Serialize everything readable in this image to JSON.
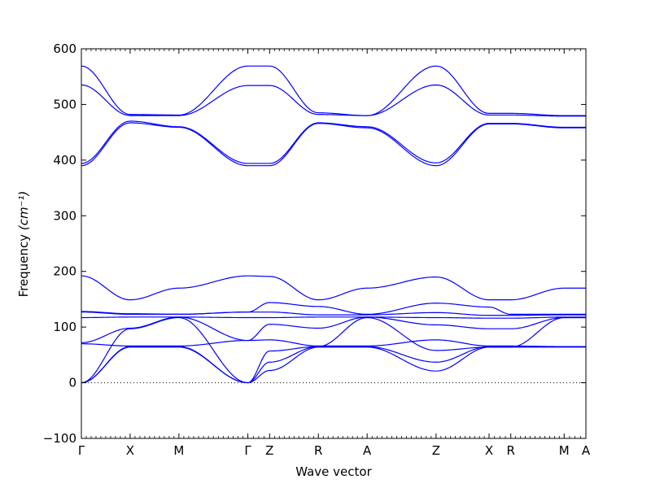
{
  "chart_data": {
    "type": "line",
    "title": "",
    "xlabel": "Wave vector",
    "ylabel": "Frequency",
    "ylabel_unit": "(cm⁻¹)",
    "ylim": [
      -100,
      600
    ],
    "yticks": [
      -100,
      0,
      100,
      200,
      300,
      400,
      500,
      600
    ],
    "ytick_labels": [
      "−100",
      "0",
      "100",
      "200",
      "300",
      "400",
      "500",
      "600"
    ],
    "grid": false,
    "legend": "none",
    "line_color": "#0000ff",
    "zero_line": {
      "y": 0,
      "style": "dotted",
      "color": "#000000"
    },
    "x_points": [
      {
        "label": "Γ",
        "x": 0.0
      },
      {
        "label": "X",
        "x": 0.5
      },
      {
        "label": "M",
        "x": 1.0
      },
      {
        "label": "Γ",
        "x": 1.707
      },
      {
        "label": "Z",
        "x": 1.93
      },
      {
        "label": "R",
        "x": 2.43
      },
      {
        "label": "A",
        "x": 2.93
      },
      {
        "label": "Z",
        "x": 3.637
      },
      {
        "label": "X",
        "x": 4.18
      },
      {
        "label": "R",
        "x": 4.403
      },
      {
        "label": "M",
        "x": 4.95
      },
      {
        "label": "A",
        "x": 5.173
      }
    ],
    "xlim": [
      0,
      5.173
    ],
    "series": [
      {
        "values": [
          569,
          482,
          481,
          569,
          569,
          485,
          480,
          569,
          484,
          484,
          480,
          480
        ]
      },
      {
        "values": [
          535,
          480,
          480,
          534,
          534,
          482,
          480,
          535,
          481,
          481,
          479,
          479
        ]
      },
      {
        "values": [
          394,
          470,
          460,
          394,
          394,
          467,
          460,
          395,
          466,
          466,
          459,
          459
        ]
      },
      {
        "values": [
          390,
          467,
          459,
          390,
          390,
          466,
          458,
          390,
          465,
          465,
          458,
          458
        ]
      },
      {
        "values": [
          192,
          149,
          170,
          192,
          191,
          149,
          170,
          190,
          149,
          149,
          170,
          170
        ]
      },
      {
        "values": [
          128,
          124,
          123,
          127,
          144,
          137,
          123,
          143,
          136,
          123,
          123,
          123
        ]
      },
      {
        "values": [
          127,
          123,
          123,
          127,
          127,
          122,
          122,
          126,
          121,
          121,
          122,
          122
        ]
      },
      {
        "values": [
          117,
          118,
          118,
          117,
          117,
          118,
          118,
          117,
          116,
          116,
          118,
          118
        ]
      },
      {
        "values": [
          72,
          98,
          118,
          76,
          105,
          98,
          118,
          104,
          97,
          97,
          117,
          117
        ]
      },
      {
        "values": [
          70,
          66,
          66,
          76,
          77,
          66,
          66,
          77,
          66,
          66,
          65,
          65
        ]
      },
      {
        "values": [
          0,
          97,
          117,
          0,
          57,
          65,
          117,
          58,
          64,
          64,
          117,
          117
        ]
      },
      {
        "values": [
          0,
          65,
          65,
          0,
          37,
          65,
          65,
          37,
          65,
          65,
          65,
          65
        ]
      },
      {
        "values": [
          0,
          64,
          64,
          0,
          22,
          64,
          64,
          21,
          64,
          64,
          64,
          64
        ]
      }
    ]
  }
}
